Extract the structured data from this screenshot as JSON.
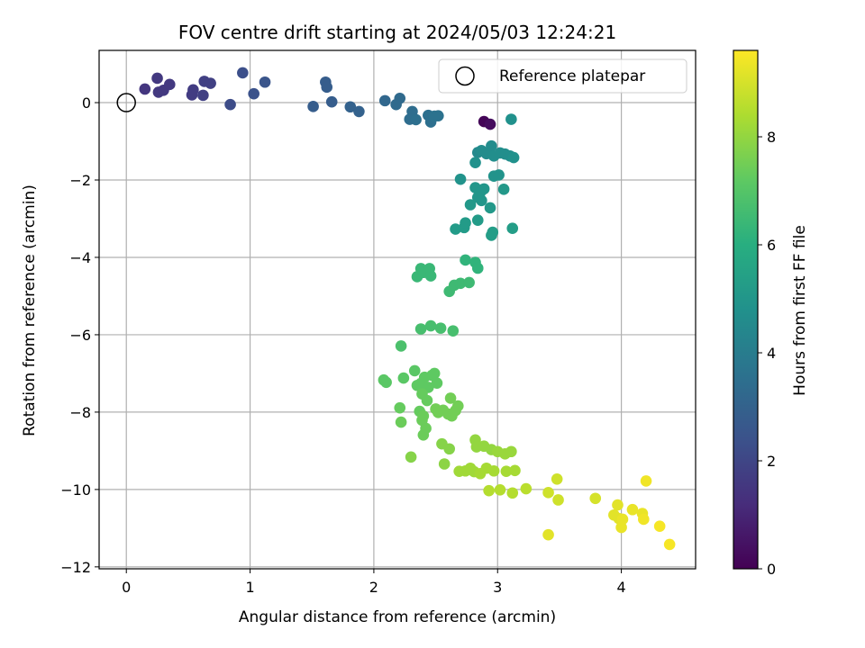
{
  "chart_data": {
    "type": "scatter",
    "title": "FOV centre drift starting at 2024/05/03 12:24:21",
    "xlabel": "Angular distance from reference (arcmin)",
    "ylabel": "Rotation from reference (arcmin)",
    "xlim": [
      -0.22,
      4.6
    ],
    "ylim": [
      -12.05,
      1.35
    ],
    "xticks": [
      0,
      1,
      2,
      3,
      4
    ],
    "yticks": [
      0,
      -2,
      -4,
      -6,
      -8,
      -10,
      -12
    ],
    "grid": true,
    "legend": {
      "location": "upper right",
      "entries": [
        "Reference platepar"
      ]
    },
    "reference_point": {
      "x": 0,
      "y": 0,
      "label": "Reference platepar"
    },
    "colorbar": {
      "label": "Hours from first FF file",
      "colormap": "viridis",
      "range": [
        0,
        9.6
      ],
      "ticks": [
        0,
        2,
        4,
        6,
        8
      ]
    },
    "series": [
      {
        "points": [
          [
            2.89,
            -0.49,
            0.1
          ],
          [
            2.94,
            -0.56,
            0.3
          ],
          [
            0.15,
            0.35,
            1.5
          ],
          [
            0.25,
            0.63,
            1.6
          ],
          [
            0.26,
            0.27,
            1.6
          ],
          [
            0.3,
            0.32,
            1.6
          ],
          [
            0.35,
            0.47,
            1.6
          ],
          [
            0.53,
            0.2,
            1.7
          ],
          [
            0.54,
            0.33,
            1.7
          ],
          [
            0.62,
            0.19,
            1.8
          ],
          [
            0.63,
            0.55,
            1.8
          ],
          [
            0.68,
            0.5,
            1.8
          ],
          [
            0.84,
            -0.05,
            2.2
          ],
          [
            0.94,
            0.77,
            2.3
          ],
          [
            1.03,
            0.23,
            2.4
          ],
          [
            1.12,
            0.53,
            2.5
          ],
          [
            1.51,
            -0.1,
            2.8
          ],
          [
            1.61,
            0.53,
            2.8
          ],
          [
            1.62,
            0.4,
            2.8
          ],
          [
            1.66,
            0.02,
            2.8
          ],
          [
            1.81,
            -0.11,
            3.0
          ],
          [
            1.88,
            -0.23,
            3.0
          ],
          [
            2.09,
            0.05,
            3.2
          ],
          [
            2.18,
            -0.05,
            3.3
          ],
          [
            2.21,
            0.11,
            3.3
          ],
          [
            2.29,
            -0.43,
            3.4
          ],
          [
            2.31,
            -0.23,
            3.4
          ],
          [
            2.34,
            -0.44,
            3.5
          ],
          [
            2.44,
            -0.33,
            3.5
          ],
          [
            2.46,
            -0.5,
            3.5
          ],
          [
            2.49,
            -0.35,
            3.6
          ],
          [
            2.52,
            -0.34,
            3.6
          ],
          [
            2.84,
            -1.29,
            4.5
          ],
          [
            2.87,
            -1.24,
            4.6
          ],
          [
            2.91,
            -1.32,
            4.6
          ],
          [
            2.95,
            -1.12,
            4.6
          ],
          [
            2.97,
            -1.38,
            4.7
          ],
          [
            3.02,
            -1.3,
            4.7
          ],
          [
            3.06,
            -1.33,
            4.7
          ],
          [
            3.1,
            -1.38,
            4.7
          ],
          [
            3.13,
            -1.42,
            4.8
          ],
          [
            3.11,
            -0.43,
            4.8
          ],
          [
            2.82,
            -1.55,
            4.8
          ],
          [
            2.97,
            -1.9,
            4.9
          ],
          [
            3.01,
            -1.87,
            4.9
          ],
          [
            2.7,
            -1.98,
            4.9
          ],
          [
            2.82,
            -2.2,
            5.0
          ],
          [
            2.86,
            -2.32,
            5.0
          ],
          [
            2.89,
            -2.23,
            5.0
          ],
          [
            2.84,
            -2.45,
            5.0
          ],
          [
            2.87,
            -2.53,
            5.0
          ],
          [
            3.05,
            -2.24,
            5.1
          ],
          [
            2.78,
            -2.64,
            5.1
          ],
          [
            2.94,
            -2.72,
            5.1
          ],
          [
            2.66,
            -3.27,
            5.2
          ],
          [
            2.73,
            -3.23,
            5.2
          ],
          [
            2.74,
            -3.11,
            5.2
          ],
          [
            2.84,
            -3.04,
            5.2
          ],
          [
            2.95,
            -3.43,
            5.3
          ],
          [
            2.96,
            -3.35,
            5.3
          ],
          [
            3.12,
            -3.25,
            5.3
          ],
          [
            2.74,
            -4.07,
            6.2
          ],
          [
            2.82,
            -4.13,
            6.2
          ],
          [
            2.84,
            -4.28,
            6.2
          ],
          [
            2.35,
            -4.5,
            6.4
          ],
          [
            2.38,
            -4.29,
            6.4
          ],
          [
            2.4,
            -4.39,
            6.4
          ],
          [
            2.45,
            -4.29,
            6.4
          ],
          [
            2.46,
            -4.48,
            6.4
          ],
          [
            2.61,
            -4.88,
            6.5
          ],
          [
            2.65,
            -4.72,
            6.5
          ],
          [
            2.7,
            -4.67,
            6.5
          ],
          [
            2.77,
            -4.65,
            6.5
          ],
          [
            2.38,
            -5.85,
            6.7
          ],
          [
            2.46,
            -5.77,
            6.7
          ],
          [
            2.54,
            -5.83,
            6.7
          ],
          [
            2.64,
            -5.9,
            6.7
          ],
          [
            2.22,
            -6.29,
            6.8
          ],
          [
            2.08,
            -7.17,
            7.1
          ],
          [
            2.1,
            -7.23,
            7.1
          ],
          [
            2.24,
            -7.12,
            7.1
          ],
          [
            2.33,
            -6.93,
            7.1
          ],
          [
            2.35,
            -7.31,
            7.2
          ],
          [
            2.38,
            -7.26,
            7.2
          ],
          [
            2.41,
            -7.1,
            7.2
          ],
          [
            2.44,
            -7.36,
            7.2
          ],
          [
            2.47,
            -7.05,
            7.2
          ],
          [
            2.49,
            -7.0,
            7.2
          ],
          [
            2.51,
            -7.25,
            7.2
          ],
          [
            2.39,
            -7.53,
            7.3
          ],
          [
            2.43,
            -7.7,
            7.3
          ],
          [
            2.21,
            -7.89,
            7.3
          ],
          [
            2.37,
            -7.98,
            7.3
          ],
          [
            2.4,
            -8.1,
            7.4
          ],
          [
            2.39,
            -8.21,
            7.4
          ],
          [
            2.42,
            -8.42,
            7.4
          ],
          [
            2.4,
            -8.59,
            7.4
          ],
          [
            2.22,
            -8.26,
            7.4
          ],
          [
            2.5,
            -7.92,
            7.5
          ],
          [
            2.52,
            -8.01,
            7.5
          ],
          [
            2.56,
            -7.95,
            7.5
          ],
          [
            2.6,
            -8.05,
            7.5
          ],
          [
            2.63,
            -8.1,
            7.5
          ],
          [
            2.66,
            -7.96,
            7.5
          ],
          [
            2.68,
            -7.84,
            7.5
          ],
          [
            2.62,
            -7.64,
            7.5
          ],
          [
            2.3,
            -9.16,
            7.8
          ],
          [
            2.55,
            -8.82,
            7.8
          ],
          [
            2.61,
            -8.95,
            7.8
          ],
          [
            2.57,
            -9.34,
            7.9
          ],
          [
            2.82,
            -8.72,
            8.0
          ],
          [
            2.83,
            -8.9,
            8.0
          ],
          [
            2.89,
            -8.88,
            8.0
          ],
          [
            2.95,
            -8.97,
            8.0
          ],
          [
            3.0,
            -9.02,
            8.1
          ],
          [
            3.06,
            -9.08,
            8.1
          ],
          [
            3.11,
            -9.02,
            8.1
          ],
          [
            2.69,
            -9.53,
            8.2
          ],
          [
            2.74,
            -9.52,
            8.2
          ],
          [
            2.78,
            -9.45,
            8.2
          ],
          [
            2.81,
            -9.54,
            8.2
          ],
          [
            2.86,
            -9.59,
            8.3
          ],
          [
            2.91,
            -9.45,
            8.3
          ],
          [
            2.97,
            -9.52,
            8.3
          ],
          [
            3.07,
            -9.53,
            8.3
          ],
          [
            3.14,
            -9.51,
            8.3
          ],
          [
            2.93,
            -10.03,
            8.5
          ],
          [
            3.02,
            -10.01,
            8.5
          ],
          [
            3.12,
            -10.09,
            8.5
          ],
          [
            3.23,
            -9.98,
            8.6
          ],
          [
            3.41,
            -10.08,
            8.9
          ],
          [
            3.48,
            -9.73,
            8.9
          ],
          [
            3.49,
            -10.27,
            8.9
          ],
          [
            3.41,
            -11.17,
            9.2
          ],
          [
            3.79,
            -10.23,
            9.0
          ],
          [
            3.94,
            -10.66,
            9.2
          ],
          [
            3.97,
            -10.4,
            9.2
          ],
          [
            3.98,
            -10.75,
            9.2
          ],
          [
            4.0,
            -10.98,
            9.3
          ],
          [
            4.01,
            -10.77,
            9.3
          ],
          [
            4.09,
            -10.52,
            9.3
          ],
          [
            4.17,
            -10.62,
            9.3
          ],
          [
            4.18,
            -10.77,
            9.4
          ],
          [
            4.2,
            -9.78,
            9.4
          ],
          [
            4.31,
            -10.95,
            9.5
          ],
          [
            4.39,
            -11.42,
            9.5
          ]
        ]
      }
    ]
  }
}
